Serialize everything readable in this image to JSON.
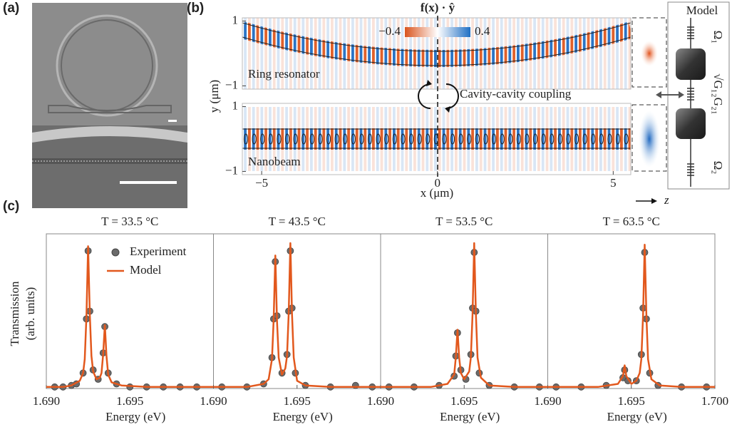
{
  "panel_labels": [
    "(a)",
    "(b)",
    "(c)"
  ],
  "panel_b": {
    "colorbar": {
      "title": "f(x) · ŷ",
      "ticks": [
        {
          "value": -0.4,
          "label": "−0.4"
        },
        0.4
      ],
      "colors": [
        "#d9541e",
        "#ffffff",
        "#1f6fc4"
      ]
    },
    "xlabel": "x (μm)",
    "ylabel": "y (μm)",
    "xlim": [
      -5.55,
      5.5
    ],
    "xticks": [
      {
        "value": -5,
        "label": "−5"
      },
      0,
      5
    ],
    "subplots": [
      {
        "label": "Ring resonator",
        "ylim": [
          -1.1,
          1.1
        ],
        "yticks": [
          {
            "value": -1,
            "label": "−1"
          },
          1
        ]
      },
      {
        "label": "Nanobeam",
        "ylim": [
          -1.1,
          1.1
        ],
        "yticks": [
          {
            "value": -1,
            "label": "−1"
          },
          1
        ]
      }
    ],
    "coupling_label": "Cavity-cavity coupling",
    "z_label": "z",
    "model": {
      "title": "Model",
      "omega1": "Ω₁",
      "omega2": "Ω₂",
      "coupling": "√G₁₂G₂₁"
    }
  },
  "chart_data": [
    {
      "type": "line",
      "title": "T = 33.5 °C",
      "ylabel": [
        "Transmission",
        "(arb. units)"
      ],
      "xlabel": "Energy (eV)",
      "xlim": [
        1.69,
        1.7
      ],
      "ylim": [
        0,
        1
      ],
      "xticks": [
        {
          "value": 1.69,
          "label": "1.690"
        },
        {
          "value": 1.695,
          "label": "1.695"
        }
      ],
      "legend": "upper left",
      "series": [
        {
          "name": "Experiment",
          "type": "scatter",
          "color": "#6b6b6b",
          "x": [
            1.6905,
            1.691,
            1.6915,
            1.6918,
            1.6922,
            1.6924,
            1.6925,
            1.6926,
            1.6928,
            1.6931,
            1.6934,
            1.6935,
            1.6937,
            1.6942,
            1.695,
            1.696,
            1.697,
            1.698,
            1.699
          ],
          "values": [
            0.01,
            0.01,
            0.02,
            0.03,
            0.1,
            0.45,
            0.89,
            0.5,
            0.12,
            0.06,
            0.23,
            0.4,
            0.1,
            0.03,
            0.01,
            0.01,
            0.01,
            0.01,
            0.01
          ]
        },
        {
          "name": "Model",
          "type": "line",
          "color": "#e2581d",
          "x": [
            1.69,
            1.691,
            1.6915,
            1.692,
            1.6922,
            1.6923,
            1.6924,
            1.6925,
            1.6926,
            1.6927,
            1.6928,
            1.693,
            1.6932,
            1.6933,
            1.6934,
            1.6935,
            1.6936,
            1.6937,
            1.6939,
            1.6945,
            1.696,
            1.7
          ],
          "values": [
            0.01,
            0.01,
            0.02,
            0.05,
            0.1,
            0.19,
            0.47,
            0.92,
            0.48,
            0.21,
            0.11,
            0.06,
            0.07,
            0.1,
            0.22,
            0.41,
            0.21,
            0.09,
            0.04,
            0.02,
            0.01,
            0.01
          ]
        }
      ]
    },
    {
      "type": "line",
      "title": "T = 43.5 °C",
      "xlabel": "Energy (eV)",
      "xlim": [
        1.69,
        1.7
      ],
      "ylim": [
        0,
        1
      ],
      "xticks": [
        {
          "value": 1.69,
          "label": "1.690"
        },
        {
          "value": 1.695,
          "label": "1.695"
        }
      ],
      "series": [
        {
          "type": "scatter",
          "color": "#6b6b6b",
          "x": [
            1.6905,
            1.692,
            1.693,
            1.6935,
            1.6936,
            1.6937,
            1.6938,
            1.6941,
            1.6944,
            1.6945,
            1.6946,
            1.6947,
            1.6949,
            1.6955,
            1.697,
            1.6985,
            1.6995
          ],
          "values": [
            0.01,
            0.01,
            0.03,
            0.2,
            0.45,
            0.82,
            0.47,
            0.1,
            0.22,
            0.5,
            0.89,
            0.52,
            0.1,
            0.02,
            0.01,
            0.02,
            0.01
          ]
        },
        {
          "type": "line",
          "color": "#e2581d",
          "x": [
            1.69,
            1.692,
            1.693,
            1.6933,
            1.6935,
            1.6936,
            1.6937,
            1.6938,
            1.6939,
            1.6941,
            1.6943,
            1.6944,
            1.6945,
            1.6946,
            1.6947,
            1.6948,
            1.695,
            1.6955,
            1.697,
            1.7
          ],
          "values": [
            0.01,
            0.01,
            0.03,
            0.06,
            0.19,
            0.44,
            0.86,
            0.44,
            0.2,
            0.09,
            0.13,
            0.21,
            0.48,
            0.94,
            0.48,
            0.2,
            0.05,
            0.02,
            0.01,
            0.01
          ]
        }
      ]
    },
    {
      "type": "line",
      "title": "T = 53.5 °C",
      "xlabel": "Energy (eV)",
      "xlim": [
        1.69,
        1.7
      ],
      "ylim": [
        0,
        1
      ],
      "xticks": [
        {
          "value": 1.69,
          "label": "1.690"
        },
        {
          "value": 1.695,
          "label": "1.695"
        }
      ],
      "series": [
        {
          "type": "scatter",
          "color": "#6b6b6b",
          "x": [
            1.6905,
            1.692,
            1.6935,
            1.6944,
            1.6945,
            1.6946,
            1.6948,
            1.6951,
            1.6954,
            1.6955,
            1.6956,
            1.6957,
            1.6959,
            1.6965,
            1.698,
            1.6995
          ],
          "values": [
            0.01,
            0.01,
            0.02,
            0.08,
            0.21,
            0.36,
            0.12,
            0.06,
            0.22,
            0.52,
            0.88,
            0.5,
            0.1,
            0.02,
            0.01,
            0.01
          ]
        },
        {
          "type": "line",
          "color": "#e2581d",
          "x": [
            1.69,
            1.693,
            1.694,
            1.6944,
            1.6945,
            1.6946,
            1.6947,
            1.6948,
            1.695,
            1.6953,
            1.6954,
            1.6955,
            1.6956,
            1.6957,
            1.6958,
            1.696,
            1.6965,
            1.698,
            1.7
          ],
          "values": [
            0.01,
            0.01,
            0.03,
            0.09,
            0.2,
            0.38,
            0.2,
            0.1,
            0.06,
            0.11,
            0.2,
            0.48,
            0.94,
            0.48,
            0.2,
            0.07,
            0.02,
            0.01,
            0.01
          ]
        }
      ]
    },
    {
      "type": "line",
      "title": "T = 63.5 °C",
      "xlabel": "Energy (eV)",
      "xlim": [
        1.69,
        1.7
      ],
      "ylim": [
        0,
        1
      ],
      "xticks": [
        {
          "value": 1.69,
          "label": "1.690"
        },
        {
          "value": 1.695,
          "label": "1.695"
        },
        {
          "value": 1.7,
          "label": "1.700"
        }
      ],
      "series": [
        {
          "type": "scatter",
          "color": "#6b6b6b",
          "x": [
            1.6905,
            1.692,
            1.6935,
            1.6945,
            1.6946,
            1.6948,
            1.6953,
            1.6956,
            1.6957,
            1.6958,
            1.6959,
            1.6961,
            1.6966,
            1.698,
            1.6995
          ],
          "values": [
            0.01,
            0.01,
            0.02,
            0.07,
            0.12,
            0.05,
            0.05,
            0.22,
            0.52,
            0.88,
            0.45,
            0.1,
            0.02,
            0.01,
            0.01
          ]
        },
        {
          "type": "line",
          "color": "#e2581d",
          "x": [
            1.69,
            1.693,
            1.6942,
            1.6945,
            1.6946,
            1.6947,
            1.695,
            1.6953,
            1.6955,
            1.6956,
            1.6957,
            1.6958,
            1.6959,
            1.696,
            1.6962,
            1.6967,
            1.698,
            1.7
          ],
          "values": [
            0.01,
            0.01,
            0.03,
            0.08,
            0.15,
            0.08,
            0.03,
            0.05,
            0.1,
            0.19,
            0.47,
            0.93,
            0.47,
            0.19,
            0.06,
            0.02,
            0.01,
            0.01
          ]
        }
      ]
    }
  ]
}
